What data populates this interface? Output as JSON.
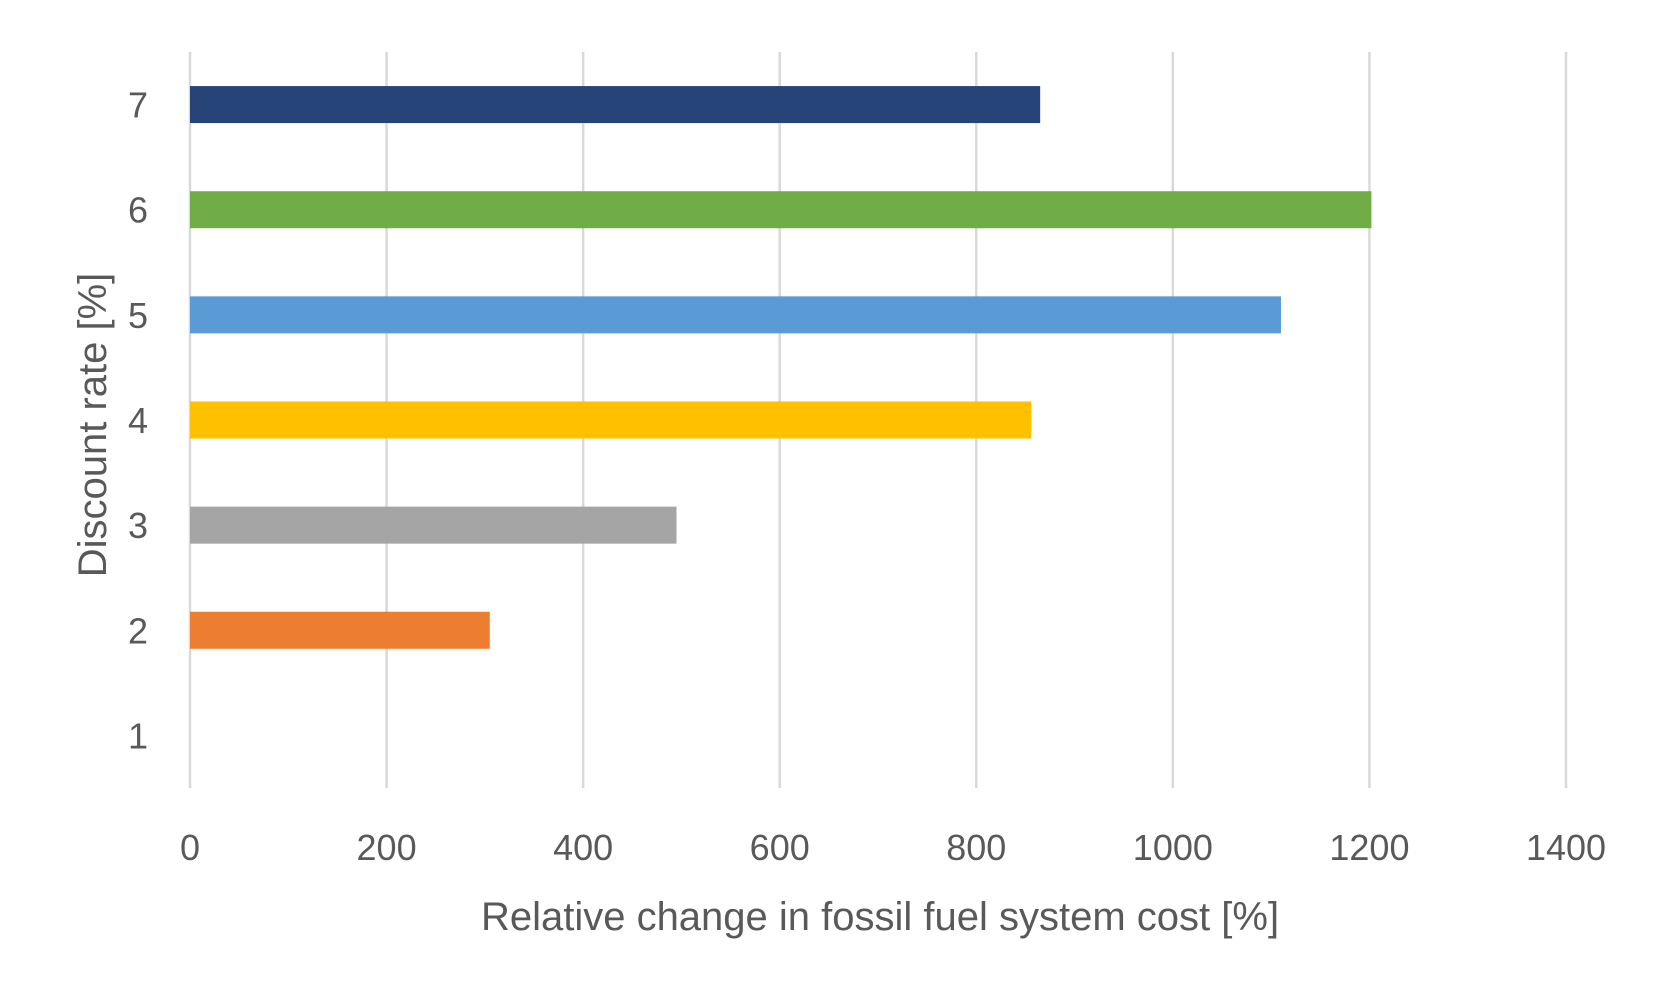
{
  "chart_data": {
    "type": "bar",
    "orientation": "horizontal",
    "title": "",
    "xlabel": "Relative change in fossil fuel system cost [%]",
    "ylabel": "Discount rate [%]",
    "xlim": [
      0,
      1400
    ],
    "x_ticks": [
      "0",
      "200",
      "400",
      "600",
      "800",
      "1000",
      "1200",
      "1400"
    ],
    "categories": [
      "1",
      "2",
      "3",
      "4",
      "5",
      "6",
      "7"
    ],
    "values": [
      0,
      305,
      495,
      856,
      1110,
      1202,
      865
    ],
    "colors": [
      "#4472c4",
      "#ed7d31",
      "#a5a5a5",
      "#ffc000",
      "#5b9bd5",
      "#70ad47",
      "#264478"
    ],
    "grid": true,
    "legend": "none"
  }
}
